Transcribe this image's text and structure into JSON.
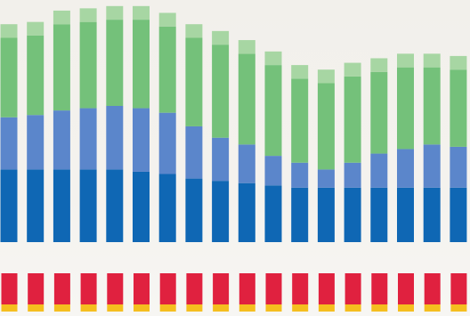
{
  "chart_data": {
    "type": "bar",
    "stacked": true,
    "title": "",
    "xlabel": "",
    "ylabel": "",
    "grid": false,
    "legend": "none",
    "ylim": [
      0,
      100
    ],
    "categories": [
      "",
      "",
      "",
      "",
      "",
      "",
      "",
      "",
      "",
      "",
      "",
      "",
      "",
      "",
      "",
      "",
      "",
      ""
    ],
    "series": [
      {
        "color": "#0f67b4",
        "values": [
          32,
          32,
          32,
          32,
          32,
          31,
          30,
          28,
          27,
          26,
          25,
          24,
          24,
          24,
          24,
          24,
          24,
          24
        ]
      },
      {
        "color": "#5b86cb",
        "values": [
          23,
          24,
          26,
          27,
          28,
          28,
          27,
          23,
          19,
          17,
          13,
          11,
          8,
          11,
          15,
          17,
          19,
          18
        ]
      },
      {
        "color": "#74c17a",
        "values": [
          35,
          35,
          38,
          38,
          38,
          39,
          38,
          39,
          41,
          40,
          40,
          37,
          38,
          38,
          36,
          36,
          34,
          34
        ]
      },
      {
        "color": "#a7d6a3",
        "values": [
          6,
          6,
          6,
          6,
          6,
          6,
          6,
          6,
          6,
          6,
          6,
          6,
          6,
          6,
          6,
          6,
          6,
          6
        ]
      }
    ],
    "lower_band": {
      "colors": {
        "primary": "#e0213f",
        "accent": "#f5be1f"
      }
    }
  }
}
